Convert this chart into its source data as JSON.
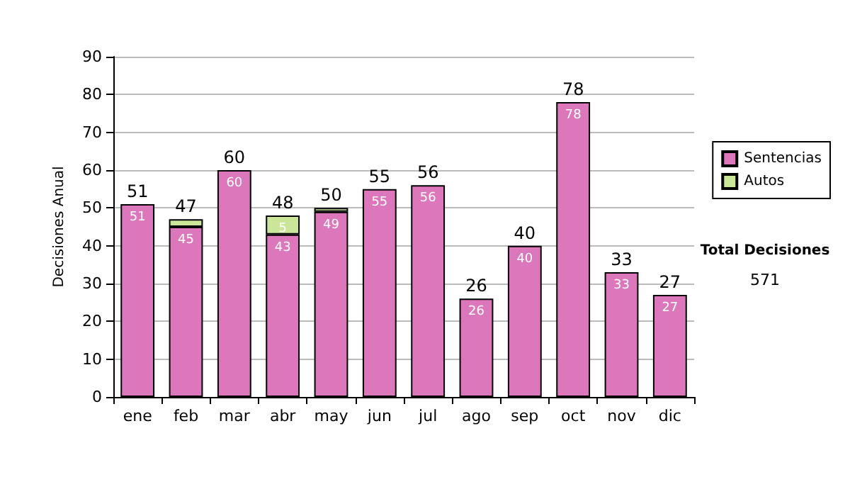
{
  "chart_data": {
    "type": "bar",
    "stacked": true,
    "ylabel": "Decisiones Anual",
    "categories": [
      "ene",
      "feb",
      "mar",
      "abr",
      "may",
      "jun",
      "jul",
      "ago",
      "sep",
      "oct",
      "nov",
      "dic"
    ],
    "series": [
      {
        "name": "Sentencias",
        "color": "#dd77bb",
        "values": [
          51,
          45,
          60,
          43,
          49,
          55,
          56,
          26,
          40,
          78,
          33,
          27
        ],
        "value_labels": [
          "51",
          "45",
          "60",
          "43",
          "49",
          "55",
          "56",
          "26",
          "40",
          "78",
          "33",
          "27"
        ]
      },
      {
        "name": "Autos",
        "color": "#cce699",
        "values": [
          null,
          2,
          null,
          5,
          1,
          null,
          null,
          null,
          null,
          null,
          null,
          null
        ],
        "value_labels": [
          null,
          null,
          null,
          "5",
          null,
          null,
          null,
          null,
          null,
          null,
          null,
          null
        ]
      }
    ],
    "totals": [
      "51",
      "47",
      "60",
      "48",
      "50",
      "55",
      "56",
      "26",
      "40",
      "78",
      "33",
      "27"
    ],
    "ylim": [
      0,
      90
    ],
    "yticks": [
      0,
      10,
      20,
      30,
      40,
      50,
      60,
      70,
      80,
      90
    ],
    "grid": "y",
    "legend": "right",
    "annotations": [
      "Total Decisiones",
      "571"
    ]
  }
}
